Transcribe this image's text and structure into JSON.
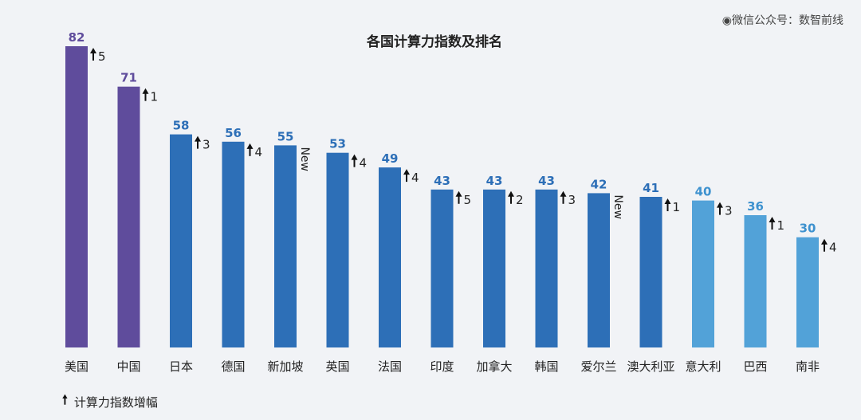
{
  "chart_data": {
    "type": "bar",
    "title": "各国计算力指数及排名",
    "categories": [
      "美国",
      "中国",
      "日本",
      "德国",
      "新加坡",
      "英国",
      "法国",
      "印度",
      "加拿大",
      "韩国",
      "爱尔兰",
      "澳大利亚",
      "意大利",
      "巴西",
      "南非"
    ],
    "values": [
      82,
      71,
      58,
      56,
      55,
      53,
      49,
      43,
      43,
      43,
      42,
      41,
      40,
      36,
      30
    ],
    "changes": [
      "5",
      "1",
      "3",
      "4",
      "New",
      "4",
      "4",
      "5",
      "2",
      "3",
      "New",
      "1",
      "3",
      "1",
      "4"
    ],
    "tiers": [
      "top",
      "top",
      "mid",
      "mid",
      "mid",
      "mid",
      "mid",
      "mid",
      "mid",
      "mid",
      "mid",
      "mid",
      "low",
      "low",
      "low"
    ],
    "ylim": [
      0,
      86
    ],
    "xlabel": "",
    "ylabel": "",
    "grid": false,
    "legend": {
      "label": "计算力指数增幅",
      "icon": "up-arrow-icon"
    }
  },
  "watermark": "◉微信公众号：数智前线",
  "colors": {
    "top": "#5f4c9c",
    "top_label": "#5f4c9c",
    "mid": "#2d6fb7",
    "mid_label": "#2d6fb7",
    "low": "#52a2d8",
    "low_label": "#3e92cf",
    "text": "#222222",
    "arrow": "#111111"
  }
}
